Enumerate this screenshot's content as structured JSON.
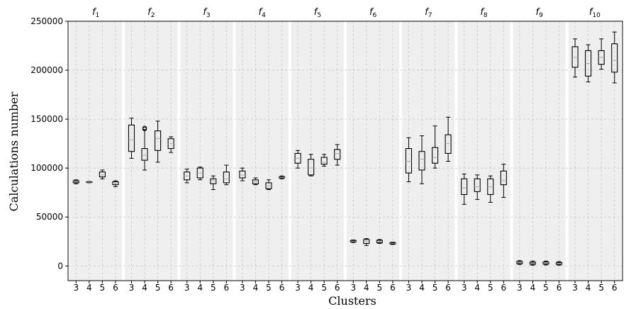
{
  "chart_data": {
    "type": "box",
    "ylabel": "Calculations number",
    "xlabel": "Clusters",
    "ylim": [
      -15000,
      250000
    ],
    "yticks": [
      0,
      50000,
      100000,
      150000,
      200000,
      250000
    ],
    "ytick_labels": [
      "0",
      "50000",
      "100000",
      "150000",
      "200000",
      "250000"
    ],
    "grid": "dashed, both axes",
    "categories": [
      "3",
      "4",
      "5",
      "6"
    ],
    "panels": [
      {
        "title": "f",
        "subscript": "1",
        "boxes": [
          {
            "cluster": "3",
            "min": 84000,
            "q1": 85000,
            "median": 86000,
            "q3": 87000,
            "max": 88000
          },
          {
            "cluster": "4",
            "min": 85000,
            "q1": 85300,
            "median": 85600,
            "q3": 86000,
            "max": 86300
          },
          {
            "cluster": "5",
            "min": 89000,
            "q1": 91000,
            "median": 93000,
            "q3": 96000,
            "max": 98000
          },
          {
            "cluster": "6",
            "min": 81000,
            "q1": 83000,
            "median": 84500,
            "q3": 86000,
            "max": 87000
          }
        ]
      },
      {
        "title": "f",
        "subscript": "2",
        "boxes": [
          {
            "cluster": "3",
            "min": 110000,
            "q1": 117000,
            "median": 129000,
            "q3": 144000,
            "max": 151000
          },
          {
            "cluster": "4",
            "min": 98000,
            "q1": 108000,
            "median": 113000,
            "q3": 120000,
            "max": 139000,
            "outliers": [
              140000,
              141000
            ]
          },
          {
            "cluster": "5",
            "min": 106000,
            "q1": 118000,
            "median": 130000,
            "q3": 138000,
            "max": 148000
          },
          {
            "cluster": "6",
            "min": 116000,
            "q1": 120000,
            "median": 125000,
            "q3": 130000,
            "max": 132000
          }
        ]
      },
      {
        "title": "f",
        "subscript": "3",
        "boxes": [
          {
            "cluster": "3",
            "min": 85000,
            "q1": 88000,
            "median": 92000,
            "q3": 96000,
            "max": 99000
          },
          {
            "cluster": "4",
            "min": 88000,
            "q1": 90000,
            "median": 95000,
            "q3": 100000,
            "max": 101000
          },
          {
            "cluster": "5",
            "min": 78000,
            "q1": 84000,
            "median": 87000,
            "q3": 89000,
            "max": 92000
          },
          {
            "cluster": "6",
            "min": 83000,
            "q1": 85000,
            "median": 89000,
            "q3": 96000,
            "max": 103000
          }
        ]
      },
      {
        "title": "f",
        "subscript": "4",
        "boxes": [
          {
            "cluster": "3",
            "min": 87000,
            "q1": 90000,
            "median": 93000,
            "q3": 97000,
            "max": 100000
          },
          {
            "cluster": "4",
            "min": 83000,
            "q1": 84000,
            "median": 86000,
            "q3": 88000,
            "max": 90000
          },
          {
            "cluster": "5",
            "min": 78000,
            "q1": 79000,
            "median": 82000,
            "q3": 85000,
            "max": 88000
          },
          {
            "cluster": "6",
            "min": 89000,
            "q1": 90000,
            "median": 90500,
            "q3": 91000,
            "max": 92000
          }
        ]
      },
      {
        "title": "f",
        "subscript": "5",
        "boxes": [
          {
            "cluster": "3",
            "min": 100000,
            "q1": 105000,
            "median": 110000,
            "q3": 115000,
            "max": 118000
          },
          {
            "cluster": "4",
            "min": 92000,
            "q1": 93000,
            "median": 100000,
            "q3": 109000,
            "max": 114000
          },
          {
            "cluster": "5",
            "min": 102000,
            "q1": 104000,
            "median": 106000,
            "q3": 111000,
            "max": 114000
          },
          {
            "cluster": "6",
            "min": 103000,
            "q1": 109000,
            "median": 115000,
            "q3": 119000,
            "max": 124000
          }
        ]
      },
      {
        "title": "f",
        "subscript": "6",
        "boxes": [
          {
            "cluster": "3",
            "min": 24000,
            "q1": 24700,
            "median": 25300,
            "q3": 26000,
            "max": 26500
          },
          {
            "cluster": "4",
            "min": 21000,
            "q1": 23000,
            "median": 25000,
            "q3": 27000,
            "max": 28000
          },
          {
            "cluster": "5",
            "min": 23000,
            "q1": 23800,
            "median": 25000,
            "q3": 26200,
            "max": 27000
          },
          {
            "cluster": "6",
            "min": 22000,
            "q1": 22600,
            "median": 23200,
            "q3": 23800,
            "max": 24300
          }
        ]
      },
      {
        "title": "f",
        "subscript": "7",
        "boxes": [
          {
            "cluster": "3",
            "min": 86000,
            "q1": 95000,
            "median": 107000,
            "q3": 120000,
            "max": 131000
          },
          {
            "cluster": "4",
            "min": 84000,
            "q1": 98000,
            "median": 109000,
            "q3": 117000,
            "max": 133000
          },
          {
            "cluster": "5",
            "min": 100000,
            "q1": 105000,
            "median": 111000,
            "q3": 121000,
            "max": 143000
          },
          {
            "cluster": "6",
            "min": 107000,
            "q1": 115000,
            "median": 125000,
            "q3": 134000,
            "max": 152000
          }
        ]
      },
      {
        "title": "f",
        "subscript": "8",
        "boxes": [
          {
            "cluster": "3",
            "min": 63000,
            "q1": 73000,
            "median": 80000,
            "q3": 89000,
            "max": 94000
          },
          {
            "cluster": "4",
            "min": 68000,
            "q1": 76000,
            "median": 81000,
            "q3": 89000,
            "max": 93000
          },
          {
            "cluster": "5",
            "min": 65000,
            "q1": 73000,
            "median": 81000,
            "q3": 89000,
            "max": 92000
          },
          {
            "cluster": "6",
            "min": 70000,
            "q1": 83000,
            "median": 87000,
            "q3": 97000,
            "max": 104000
          }
        ]
      },
      {
        "title": "f",
        "subscript": "9",
        "boxes": [
          {
            "cluster": "3",
            "min": 1500,
            "q1": 2500,
            "median": 3500,
            "q3": 4500,
            "max": 5500
          },
          {
            "cluster": "4",
            "min": 800,
            "q1": 1800,
            "median": 2800,
            "q3": 3800,
            "max": 5000
          },
          {
            "cluster": "5",
            "min": 1000,
            "q1": 2000,
            "median": 3000,
            "q3": 4000,
            "max": 5000
          },
          {
            "cluster": "6",
            "min": 800,
            "q1": 1700,
            "median": 2500,
            "q3": 3500,
            "max": 4500
          }
        ]
      },
      {
        "title": "f",
        "subscript": "10",
        "boxes": [
          {
            "cluster": "3",
            "min": 193000,
            "q1": 203000,
            "median": 213000,
            "q3": 224000,
            "max": 232000
          },
          {
            "cluster": "4",
            "min": 188000,
            "q1": 194000,
            "median": 207000,
            "q3": 220000,
            "max": 226000
          },
          {
            "cluster": "5",
            "min": 201000,
            "q1": 206000,
            "median": 213000,
            "q3": 220000,
            "max": 232000
          },
          {
            "cluster": "6",
            "min": 187000,
            "q1": 198000,
            "median": 210000,
            "q3": 227000,
            "max": 239000
          }
        ]
      }
    ]
  },
  "colors": {
    "panel_bg": "#efefef",
    "box_edge": "#000000",
    "median": "#aaaaaa",
    "grid": "#c7c7c7"
  }
}
